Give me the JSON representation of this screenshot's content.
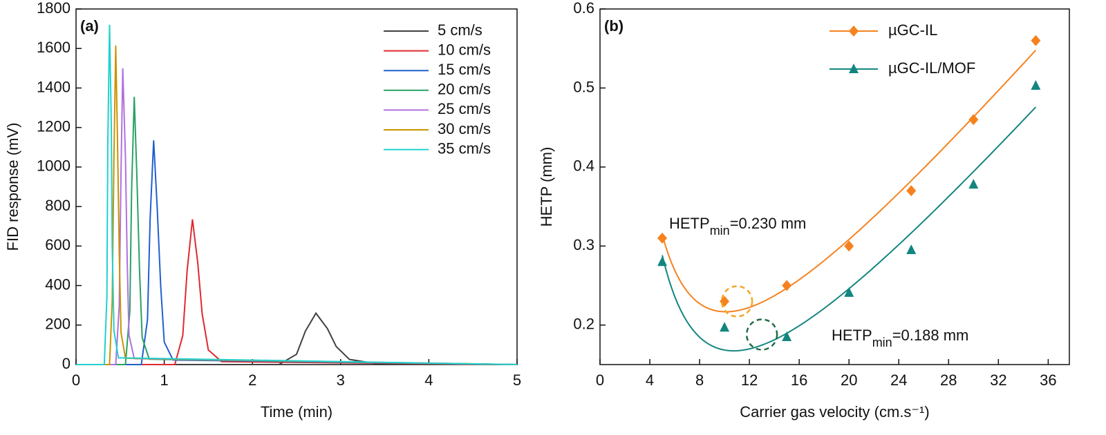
{
  "chart_data": [
    {
      "type": "line",
      "label": "(a)",
      "xlabel": "Time (min)",
      "ylabel": "FID response (mV)",
      "xlim": [
        0,
        5
      ],
      "ylim": [
        0,
        1800
      ],
      "xticks": [
        0,
        1,
        2,
        3,
        4,
        5
      ],
      "yticks": [
        0,
        200,
        400,
        600,
        800,
        1000,
        1200,
        1400,
        1600,
        1800
      ],
      "legend": "upper right",
      "series": [
        {
          "name": "5 cm/s",
          "color": "#404040",
          "x": [
            0,
            2.3,
            2.5,
            2.6,
            2.72,
            2.85,
            2.95,
            3.1,
            3.4,
            5
          ],
          "values": [
            0,
            0,
            52,
            169,
            260,
            182,
            91,
            26,
            5,
            0
          ]
        },
        {
          "name": "10 cm/s",
          "color": "#e0282e",
          "x": [
            0,
            1.12,
            1.21,
            1.26,
            1.32,
            1.38,
            1.43,
            1.5,
            1.65,
            5
          ],
          "values": [
            0,
            0,
            147,
            478,
            735,
            515,
            257,
            74,
            15,
            0
          ]
        },
        {
          "name": "15 cm/s",
          "color": "#1f5fcf",
          "x": [
            0,
            0.74,
            0.81,
            0.84,
            0.88,
            0.92,
            0.96,
            1.0,
            1.1,
            5
          ],
          "values": [
            0,
            0,
            227,
            738,
            1135,
            795,
            397,
            114,
            23,
            0
          ]
        },
        {
          "name": "20 cm/s",
          "color": "#2aa065",
          "x": [
            0,
            0.56,
            0.61,
            0.63,
            0.66,
            0.69,
            0.72,
            0.75,
            0.83,
            5
          ],
          "values": [
            0,
            0,
            271,
            881,
            1355,
            949,
            474,
            136,
            27,
            0
          ]
        },
        {
          "name": "25 cm/s",
          "color": "#b070e0",
          "x": [
            0,
            0.45,
            0.49,
            0.51,
            0.53,
            0.56,
            0.58,
            0.6,
            0.66,
            5
          ],
          "values": [
            0,
            0,
            300,
            975,
            1500,
            1050,
            525,
            150,
            30,
            0
          ]
        },
        {
          "name": "30 cm/s",
          "color": "#c89400",
          "x": [
            0,
            0.38,
            0.41,
            0.43,
            0.45,
            0.47,
            0.49,
            0.51,
            0.56,
            5
          ],
          "values": [
            0,
            0,
            323,
            1050,
            1615,
            1131,
            565,
            162,
            32,
            0
          ]
        },
        {
          "name": "35 cm/s",
          "color": "#20d0d0",
          "x": [
            0,
            0.32,
            0.35,
            0.36,
            0.38,
            0.4,
            0.41,
            0.43,
            0.48,
            5
          ],
          "values": [
            0,
            0,
            344,
            1118,
            1720,
            1204,
            602,
            172,
            34,
            0
          ]
        }
      ]
    },
    {
      "type": "scatter",
      "label": "(b)",
      "xlabel": "Carrier gas velocity (cm.s⁻¹)",
      "ylabel": "HETP (mm)",
      "xlim": [
        0,
        37.7
      ],
      "ylim": [
        0.15,
        0.6
      ],
      "xticks": [
        0,
        4,
        8,
        12,
        16,
        20,
        24,
        28,
        32,
        36
      ],
      "yticks": [
        0.2,
        0.3,
        0.4,
        0.5,
        0.6
      ],
      "legend": "upper center",
      "series": [
        {
          "name": "µGC-IL",
          "color": "#f5821f",
          "marker": "diamond",
          "x": [
            5,
            10,
            15,
            20,
            25,
            30,
            35
          ],
          "values": [
            0.31,
            0.23,
            0.25,
            0.3,
            0.37,
            0.46,
            0.56
          ]
        },
        {
          "name": "µGC-IL/MOF",
          "color": "#13857f",
          "marker": "triangle",
          "x": [
            5,
            10,
            15,
            20,
            25,
            30,
            35
          ],
          "values": [
            0.28,
            0.197,
            0.185,
            0.241,
            0.295,
            0.378,
            0.503
          ]
        }
      ],
      "annotations": [
        {
          "text": "HETP",
          "sub": "min",
          "rest": "=0.230 mm",
          "x": 11,
          "y": 0.23,
          "color": "#f5a623"
        },
        {
          "text": "HETP",
          "sub": "min",
          "rest": "=0.188 mm",
          "x": 13,
          "y": 0.188,
          "color": "#236b45"
        }
      ]
    }
  ]
}
